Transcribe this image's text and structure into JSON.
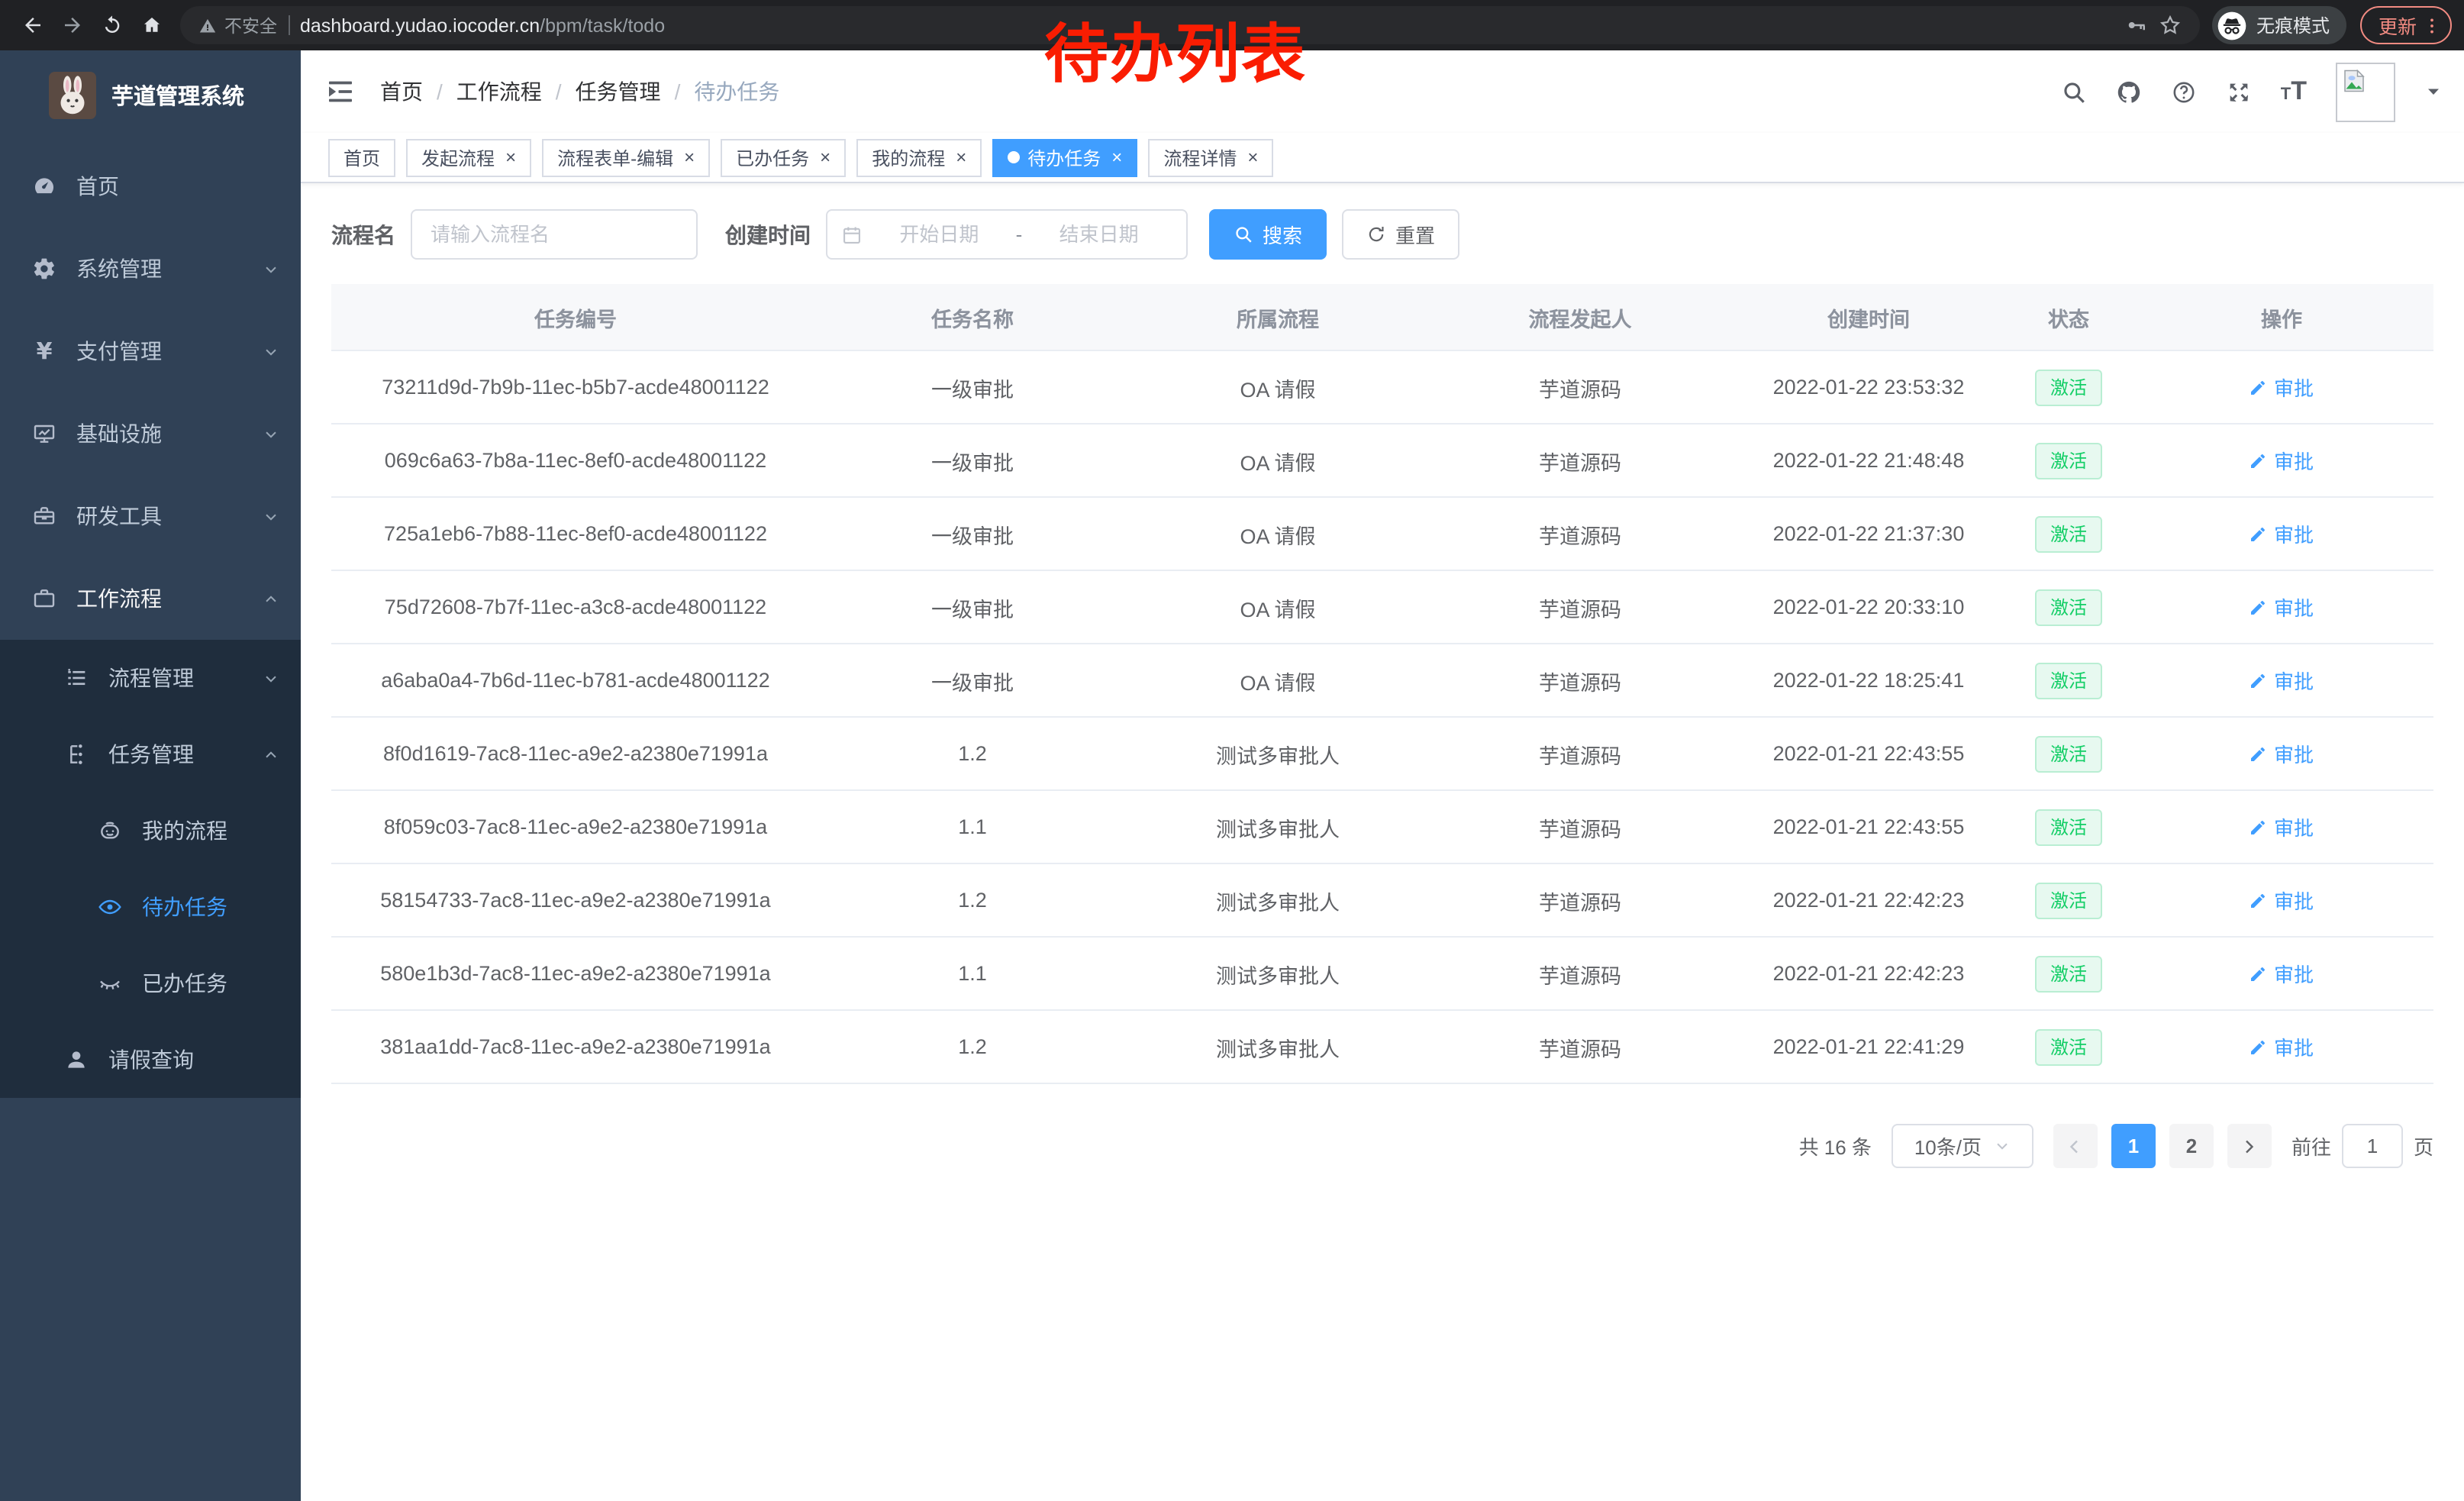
{
  "browser": {
    "security_label": "不安全",
    "url_host": "dashboard.yudao.iocoder.cn",
    "url_path": "/bpm/task/todo",
    "incognito_label": "无痕模式",
    "update_label": "更新"
  },
  "annotation": {
    "text": "待办列表",
    "color": "#fa1d02"
  },
  "sidebar": {
    "title": "芋道管理系统",
    "menu": [
      {
        "key": "home",
        "icon": "gauge",
        "label": "首页"
      },
      {
        "key": "system-management",
        "icon": "gear",
        "label": "系统管理",
        "chevron": "down"
      },
      {
        "key": "payment-management",
        "icon": "yen",
        "label": "支付管理",
        "chevron": "down"
      },
      {
        "key": "infrastructure",
        "icon": "monitor",
        "label": "基础设施",
        "chevron": "down"
      },
      {
        "key": "dev-tools",
        "icon": "toolbox",
        "label": "研发工具",
        "chevron": "down"
      },
      {
        "key": "workflow",
        "icon": "briefcase",
        "label": "工作流程",
        "chevron": "up",
        "expanded": true,
        "children": [
          {
            "key": "process-management",
            "icon": "list-tree",
            "label": "流程管理",
            "chevron": "down"
          },
          {
            "key": "task-management",
            "icon": "org-tree",
            "label": "任务管理",
            "chevron": "up",
            "expanded": true,
            "children": [
              {
                "key": "my-processes",
                "icon": "robot-face",
                "label": "我的流程"
              },
              {
                "key": "todo-tasks",
                "icon": "eye-open",
                "label": "待办任务",
                "active": true
              },
              {
                "key": "done-tasks",
                "icon": "eye-closed",
                "label": "已办任务"
              }
            ]
          },
          {
            "key": "leave-query",
            "icon": "user",
            "label": "请假查询"
          }
        ]
      }
    ]
  },
  "header": {
    "breadcrumbs": [
      {
        "label": "首页",
        "link": true
      },
      {
        "label": "工作流程",
        "link": false
      },
      {
        "label": "任务管理",
        "link": false
      },
      {
        "label": "待办任务",
        "link": false,
        "current": true
      }
    ]
  },
  "tabs": [
    {
      "key": "home",
      "label": "首页",
      "closable": false,
      "active": false
    },
    {
      "key": "start-process",
      "label": "发起流程",
      "closable": true,
      "active": false
    },
    {
      "key": "process-form-edit",
      "label": "流程表单-编辑",
      "closable": true,
      "active": false
    },
    {
      "key": "done-tasks",
      "label": "已办任务",
      "closable": true,
      "active": false
    },
    {
      "key": "my-processes",
      "label": "我的流程",
      "closable": true,
      "active": false
    },
    {
      "key": "todo-tasks",
      "label": "待办任务",
      "closable": true,
      "active": true
    },
    {
      "key": "process-detail",
      "label": "流程详情",
      "closable": true,
      "active": false
    }
  ],
  "filters": {
    "process_name_label": "流程名",
    "process_name_placeholder": "请输入流程名",
    "create_time_label": "创建时间",
    "start_placeholder": "开始日期",
    "range_separator": "-",
    "end_placeholder": "结束日期",
    "search_label": "搜索",
    "reset_label": "重置"
  },
  "table": {
    "columns": [
      "任务编号",
      "任务名称",
      "所属流程",
      "流程发起人",
      "创建时间",
      "状态",
      "操作"
    ],
    "rows": [
      {
        "id": "73211d9d-7b9b-11ec-b5b7-acde48001122",
        "name": "一级审批",
        "process": "OA 请假",
        "initiator": "芋道源码",
        "created": "2022-01-22 23:53:32",
        "status": "激活",
        "action": "审批"
      },
      {
        "id": "069c6a63-7b8a-11ec-8ef0-acde48001122",
        "name": "一级审批",
        "process": "OA 请假",
        "initiator": "芋道源码",
        "created": "2022-01-22 21:48:48",
        "status": "激活",
        "action": "审批"
      },
      {
        "id": "725a1eb6-7b88-11ec-8ef0-acde48001122",
        "name": "一级审批",
        "process": "OA 请假",
        "initiator": "芋道源码",
        "created": "2022-01-22 21:37:30",
        "status": "激活",
        "action": "审批"
      },
      {
        "id": "75d72608-7b7f-11ec-a3c8-acde48001122",
        "name": "一级审批",
        "process": "OA 请假",
        "initiator": "芋道源码",
        "created": "2022-01-22 20:33:10",
        "status": "激活",
        "action": "审批"
      },
      {
        "id": "a6aba0a4-7b6d-11ec-b781-acde48001122",
        "name": "一级审批",
        "process": "OA 请假",
        "initiator": "芋道源码",
        "created": "2022-01-22 18:25:41",
        "status": "激活",
        "action": "审批"
      },
      {
        "id": "8f0d1619-7ac8-11ec-a9e2-a2380e71991a",
        "name": "1.2",
        "process": "测试多审批人",
        "initiator": "芋道源码",
        "created": "2022-01-21 22:43:55",
        "status": "激活",
        "action": "审批"
      },
      {
        "id": "8f059c03-7ac8-11ec-a9e2-a2380e71991a",
        "name": "1.1",
        "process": "测试多审批人",
        "initiator": "芋道源码",
        "created": "2022-01-21 22:43:55",
        "status": "激活",
        "action": "审批"
      },
      {
        "id": "58154733-7ac8-11ec-a9e2-a2380e71991a",
        "name": "1.2",
        "process": "测试多审批人",
        "initiator": "芋道源码",
        "created": "2022-01-21 22:42:23",
        "status": "激活",
        "action": "审批"
      },
      {
        "id": "580e1b3d-7ac8-11ec-a9e2-a2380e71991a",
        "name": "1.1",
        "process": "测试多审批人",
        "initiator": "芋道源码",
        "created": "2022-01-21 22:42:23",
        "status": "激活",
        "action": "审批"
      },
      {
        "id": "381aa1dd-7ac8-11ec-a9e2-a2380e71991a",
        "name": "1.2",
        "process": "测试多审批人",
        "initiator": "芋道源码",
        "created": "2022-01-21 22:41:29",
        "status": "激活",
        "action": "审批"
      }
    ]
  },
  "pagination": {
    "total_label": "共 16 条",
    "page_size_label": "10条/页",
    "pages": [
      "1",
      "2"
    ],
    "active_page": "1",
    "goto_label": "前往",
    "goto_value": "1",
    "page_suffix": "页"
  },
  "colors": {
    "accent": "#409eff",
    "sidebar_bg": "#304156",
    "sidebar_sub_bg": "#1f2d3d",
    "status_green": "#13ce66",
    "chrome_update": "#f28b82"
  }
}
